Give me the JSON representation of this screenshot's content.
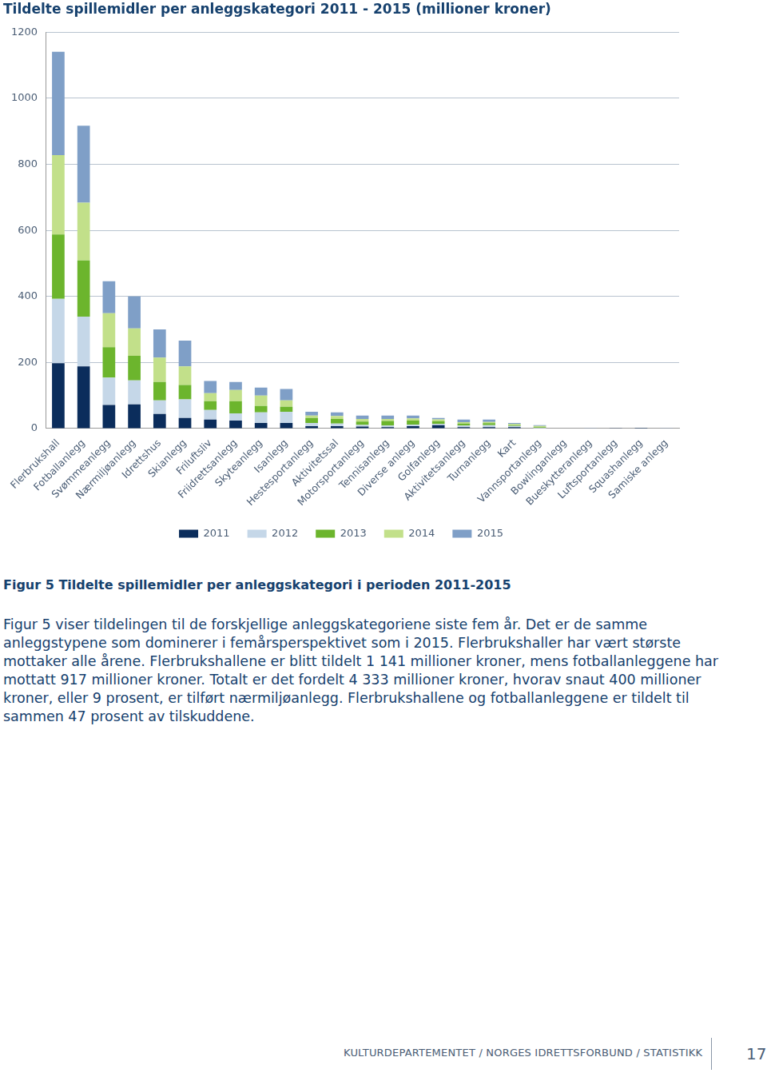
{
  "chart_data": {
    "type": "bar",
    "title": "Tildelte spillemidler per anleggskategori 2011 - 2015 (millioner kroner)",
    "categories": [
      "Flerbrukshall",
      "Fotballanlegg",
      "Svømmeanlegg",
      "Nærmiljøanlegg",
      "Idrettshus",
      "Skianlegg",
      "Friluftsliv",
      "Friidrettsanlegg",
      "Skyteanlegg",
      "Isanlegg",
      "Hestesportanlegg",
      "Aktivitetssal",
      "Motorsportanlegg",
      "Tennisanlegg",
      "Diverse anlegg",
      "Golfanlegg",
      "Aktivitetsanlegg",
      "Turnanlegg",
      "Kart",
      "Vannsportanlegg",
      "Bowlinganlegg",
      "Bueskytteranlegg",
      "Luftsportanlegg",
      "Squashanlegg",
      "Samiske anlegg"
    ],
    "series": [
      {
        "name": "2011",
        "color": "#0b2d5c",
        "values": [
          198,
          188,
          71,
          73,
          44,
          32,
          27,
          24,
          17,
          17,
          7,
          7,
          6,
          4,
          7,
          10,
          4,
          4,
          4,
          1,
          1,
          0,
          0.5,
          2,
          0
        ]
      },
      {
        "name": "2012",
        "color": "#c5d7e8",
        "values": [
          195,
          151,
          83,
          73,
          41,
          56,
          29,
          22,
          32,
          34,
          10,
          8,
          5,
          5,
          5,
          4,
          5,
          6,
          4,
          1,
          0,
          0,
          0,
          0,
          0
        ]
      },
      {
        "name": "2013",
        "color": "#6cb52d",
        "values": [
          195,
          170,
          92,
          74,
          56,
          44,
          27,
          37,
          19,
          15,
          15,
          14,
          10,
          14,
          12,
          8,
          6,
          6,
          3,
          2,
          0,
          0,
          0,
          0,
          0
        ]
      },
      {
        "name": "2014",
        "color": "#c2e08a",
        "values": [
          240,
          175,
          103,
          83,
          74,
          56,
          24,
          34,
          32,
          19,
          7,
          9,
          8,
          6,
          7,
          6,
          4,
          4,
          3,
          4,
          0,
          0,
          0,
          0,
          0
        ]
      },
      {
        "name": "2015",
        "color": "#7f9fc7",
        "values": [
          313,
          233,
          97,
          97,
          85,
          78,
          37,
          24,
          24,
          35,
          12,
          11,
          10,
          10,
          8,
          4,
          8,
          7,
          3,
          2,
          0,
          0.5,
          0,
          0,
          0.5
        ]
      }
    ],
    "stacked": true,
    "ylim": [
      0,
      1200
    ],
    "yticks": [
      0,
      200,
      400,
      600,
      800,
      1000,
      1200
    ],
    "grid": true,
    "legend": "bottom"
  },
  "page": {
    "caption": "Figur 5 Tildelte spillemidler per anleggskategori i perioden 2011-2015",
    "paragraph": "Figur 5 viser tildelingen til de forskjellige anleggskategoriene siste fem år. Det er de samme anleggstypene som dominerer i femårsperspektivet som i 2015. Flerbrukshaller har vært største mottaker alle årene. Flerbrukshallene er blitt tildelt 1 141 millioner kroner, mens fotballanleggene har mottatt 917 millioner kroner. Totalt er det fordelt 4 333 millioner kroner, hvorav snaut 400 millioner kroner, eller 9 prosent, er tilført nærmiljøanlegg. Flerbrukshallene og fotballanleggene er tildelt til sammen 47 prosent av tilskuddene.",
    "footer": "KULTURDEPARTEMENTET / NORGES IDRETTSFORBUND / STATISTIKK",
    "page_number": "17"
  }
}
